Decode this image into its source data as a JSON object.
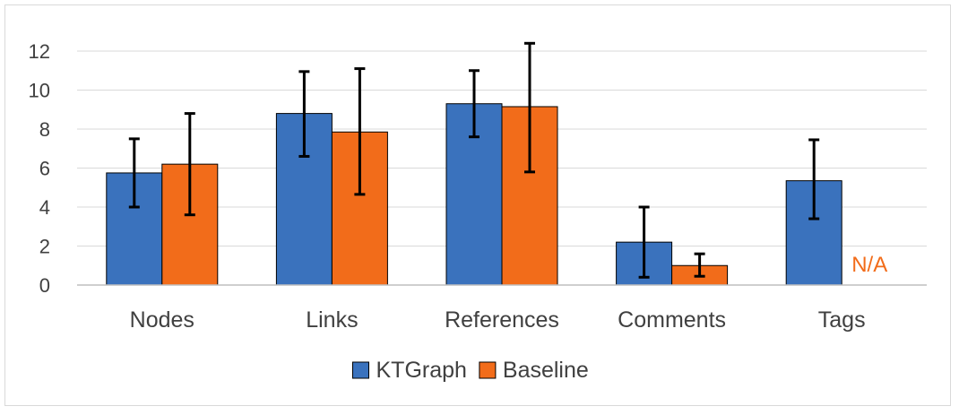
{
  "chart_data": {
    "type": "bar",
    "title": "",
    "xlabel": "",
    "ylabel": "",
    "ylim": [
      0,
      12
    ],
    "yticks": [
      0,
      2,
      4,
      6,
      8,
      10,
      12
    ],
    "grid": true,
    "legend_position": "bottom",
    "categories": [
      "Nodes",
      "Links",
      "References",
      "Comments",
      "Tags"
    ],
    "series": [
      {
        "name": "KTGraph",
        "color": "#3a72bd",
        "values": [
          5.75,
          8.8,
          9.3,
          2.2,
          5.35
        ],
        "error_low": [
          4.0,
          6.6,
          7.6,
          0.4,
          3.4
        ],
        "error_high": [
          7.5,
          10.95,
          11.0,
          4.0,
          7.45
        ]
      },
      {
        "name": "Baseline",
        "color": "#f26c1a",
        "values": [
          6.2,
          7.85,
          9.15,
          1.0,
          null
        ],
        "error_low": [
          3.6,
          4.65,
          5.8,
          0.45,
          null
        ],
        "error_high": [
          8.8,
          11.1,
          12.4,
          1.6,
          null
        ]
      }
    ],
    "annotations": [
      {
        "category": "Tags",
        "series": "Baseline",
        "text": "N/A",
        "color": "#f26c1a"
      }
    ]
  }
}
